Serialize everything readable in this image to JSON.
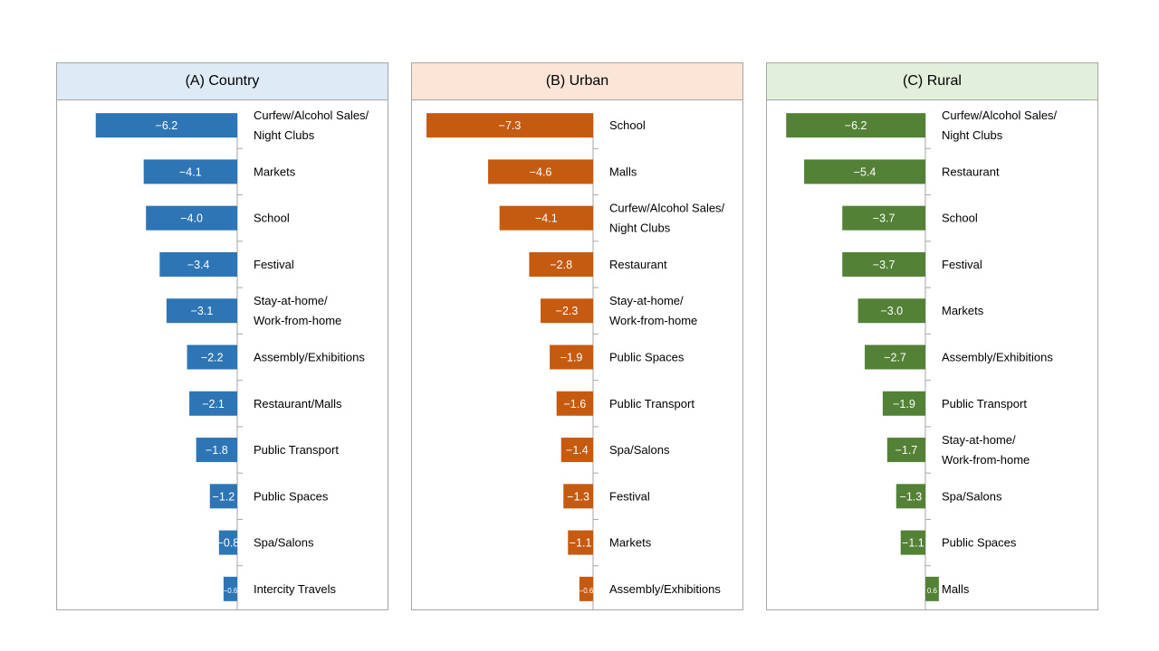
{
  "chart_data": [
    {
      "type": "bar",
      "orientation": "horizontal",
      "title": "(A) Country",
      "header_color": "#deebf7",
      "bar_color": "#2e75b6",
      "categories": [
        "Curfew/Alcohol Sales/ Night Clubs",
        "Markets",
        "School",
        "Festival",
        "Stay-at-home/ Work-from-home",
        "Assembly/Exhibitions",
        "Restaurant/Malls",
        "Public Transport",
        "Public Spaces",
        "Spa/Salons",
        "Intercity Travels"
      ],
      "values": [
        -6.2,
        -4.1,
        -4.0,
        -3.4,
        -3.1,
        -2.2,
        -2.1,
        -1.8,
        -1.2,
        -0.8,
        -0.6
      ],
      "value_labels": [
        "−6.2",
        "−4.1",
        "−4.0",
        "−3.4",
        "−3.1",
        "−2.2",
        "−2.1",
        "−1.8",
        "−1.2",
        "−0.8",
        "−0.6"
      ],
      "xlim": [
        -7.5,
        0
      ]
    },
    {
      "type": "bar",
      "orientation": "horizontal",
      "title": "(B) Urban",
      "header_color": "#fbe5d6",
      "bar_color": "#c55a11",
      "categories": [
        "School",
        "Malls",
        "Curfew/Alcohol Sales/ Night Clubs",
        "Restaurant",
        "Stay-at-home/ Work-from-home",
        "Public Spaces",
        "Public Transport",
        "Spa/Salons",
        "Festival",
        "Markets",
        "Assembly/Exhibitions"
      ],
      "values": [
        -7.3,
        -4.6,
        -4.1,
        -2.8,
        -2.3,
        -1.9,
        -1.6,
        -1.4,
        -1.3,
        -1.1,
        -0.6
      ],
      "value_labels": [
        "−7.3",
        "−4.6",
        "−4.1",
        "−2.8",
        "−2.3",
        "−1.9",
        "−1.6",
        "−1.4",
        "−1.3",
        "−1.1",
        "−0.6"
      ],
      "xlim": [
        -7.5,
        0
      ]
    },
    {
      "type": "bar",
      "orientation": "horizontal",
      "title": "(C) Rural",
      "header_color": "#e2efda",
      "bar_color": "#538135",
      "categories": [
        "Curfew/Alcohol Sales/ Night Clubs",
        "Restaurant",
        "School",
        "Festival",
        "Markets",
        "Assembly/Exhibitions",
        "Public Transport",
        "Stay-at-home/ Work-from-home",
        "Spa/Salons",
        "Public Spaces",
        "Malls"
      ],
      "values": [
        -6.2,
        -5.4,
        -3.7,
        -3.7,
        -3.0,
        -2.7,
        -1.9,
        -1.7,
        -1.3,
        -1.1,
        0.6
      ],
      "value_labels": [
        "−6.2",
        "−5.4",
        "−3.7",
        "−3.7",
        "−3.0",
        "−2.7",
        "−1.9",
        "−1.7",
        "−1.3",
        "−1.1",
        "0.6"
      ],
      "xlim": [
        -7.5,
        0.6
      ]
    }
  ]
}
